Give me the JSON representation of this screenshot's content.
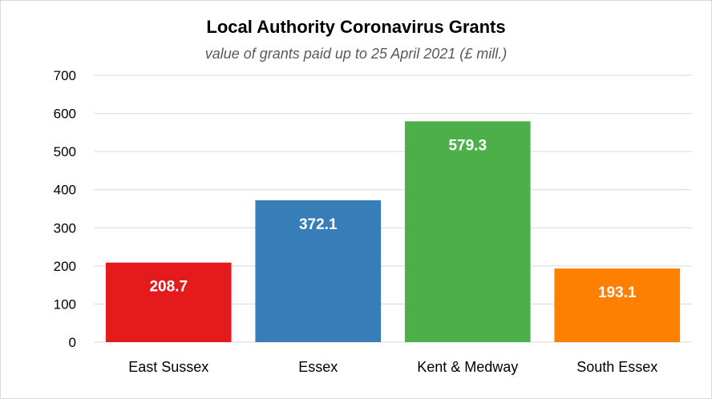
{
  "chart_data": {
    "type": "bar",
    "title": "Local Authority Coronavirus Grants",
    "subtitle": "value of grants paid up to 25 April 2021 (£ mill.)",
    "categories": [
      "East Sussex",
      "Essex",
      "Kent & Medway",
      "South Essex"
    ],
    "values": [
      208.7,
      372.1,
      579.3,
      193.1
    ],
    "data_labels": [
      "208.7",
      "372.1",
      "579.3",
      "193.1"
    ],
    "colors": [
      "#e41a1c",
      "#377eb8",
      "#4daf4a",
      "#ff7f00"
    ],
    "ylim": [
      0,
      700
    ],
    "yticks": [
      0,
      100,
      200,
      300,
      400,
      500,
      600,
      700
    ],
    "ytick_labels": [
      "0",
      "100",
      "200",
      "300",
      "400",
      "500",
      "600",
      "700"
    ],
    "grid": true,
    "legend": "none"
  }
}
